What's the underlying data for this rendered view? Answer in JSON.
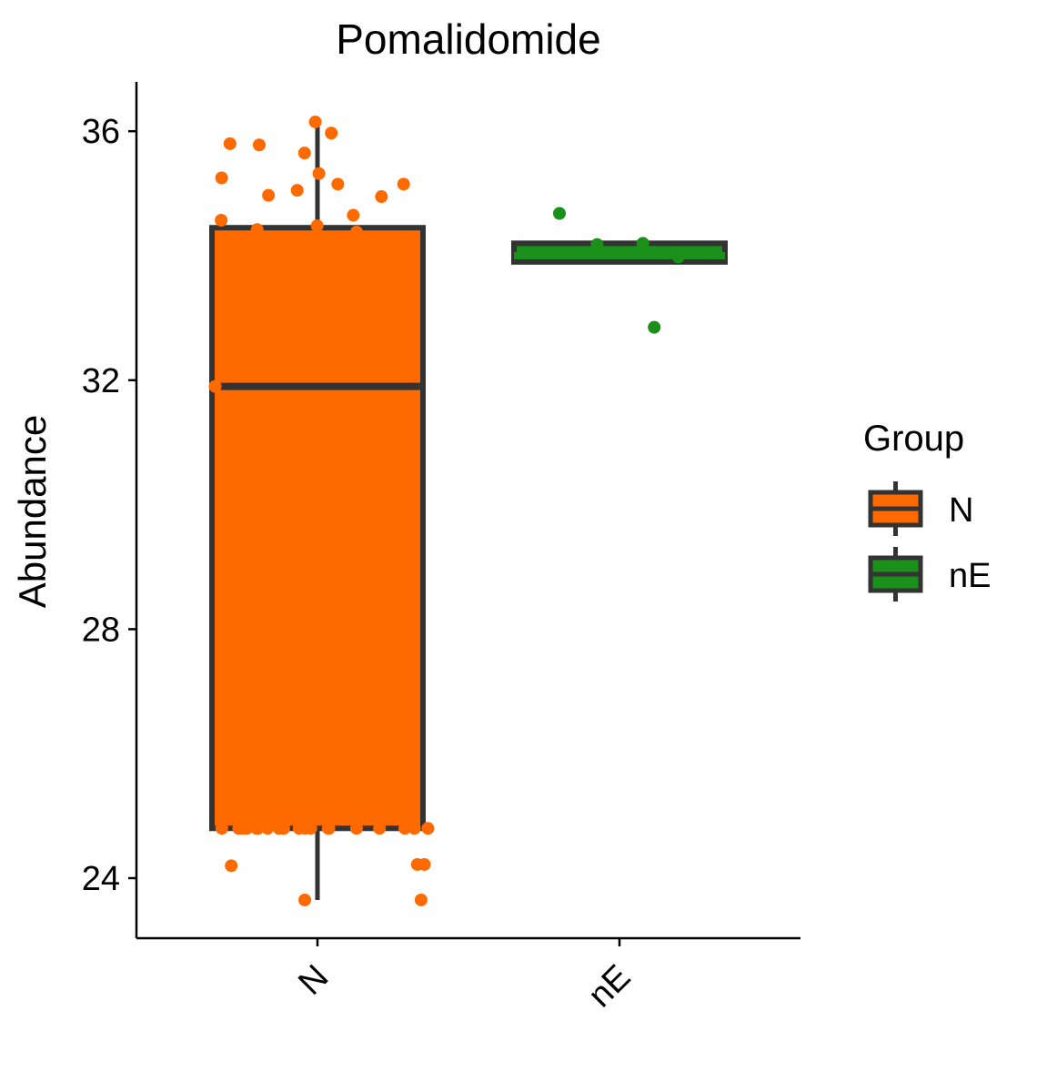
{
  "chart_data": {
    "type": "box",
    "title": "Pomalidomide",
    "xlabel": "",
    "ylabel": "Abundance",
    "ylim": [
      23.0,
      36.8
    ],
    "yticks": [
      24,
      28,
      32,
      36
    ],
    "categories": [
      "N",
      "nE"
    ],
    "legend": {
      "title": "Group",
      "position": "right",
      "entries": [
        "N",
        "nE"
      ]
    },
    "colors": {
      "N": "#FF6A00",
      "nE": "#1A8F1A",
      "box_line": "#333333",
      "axis": "#000000"
    },
    "boxes": [
      {
        "category": "N",
        "whisker_low": 23.65,
        "q1": 24.8,
        "median": 31.9,
        "q3": 34.45,
        "whisker_high": 36.15
      },
      {
        "category": "nE",
        "whisker_low": 33.9,
        "q1": 33.9,
        "median": 34.0,
        "q3": 34.2,
        "whisker_high": 34.2
      }
    ],
    "points": [
      {
        "group": "N",
        "values": [
          36.15,
          35.97,
          35.8,
          35.78,
          35.65,
          35.32,
          35.25,
          35.15,
          35.15,
          35.05,
          34.97,
          34.95,
          34.65,
          34.57,
          34.48,
          34.42,
          34.38,
          34.3,
          34.28,
          34.25,
          33.45,
          31.9,
          24.22,
          24.22,
          24.2,
          23.65,
          23.65,
          24.8,
          24.8,
          24.8,
          24.8,
          24.8,
          24.8,
          24.8,
          24.8,
          24.8,
          24.8,
          24.8,
          24.8,
          24.8,
          24.8,
          24.8,
          24.8,
          24.8,
          24.8,
          24.8,
          24.8
        ]
      },
      {
        "group": "nE",
        "values": [
          34.68,
          34.2,
          34.18,
          33.98,
          32.85
        ]
      }
    ]
  }
}
